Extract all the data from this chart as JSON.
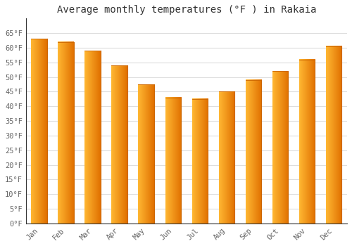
{
  "title": "Average monthly temperatures (°F ) in Rakaia",
  "months": [
    "Jan",
    "Feb",
    "Mar",
    "Apr",
    "May",
    "Jun",
    "Jul",
    "Aug",
    "Sep",
    "Oct",
    "Nov",
    "Dec"
  ],
  "values": [
    63,
    62,
    59,
    54,
    47.5,
    43,
    42.5,
    45,
    49,
    52,
    56,
    60.5
  ],
  "bar_color_left": "#FFB732",
  "bar_color_right": "#F07800",
  "bar_edge_color": "#CC6600",
  "ylim": [
    0,
    70
  ],
  "yticks": [
    0,
    5,
    10,
    15,
    20,
    25,
    30,
    35,
    40,
    45,
    50,
    55,
    60,
    65
  ],
  "ytick_labels": [
    "0°F",
    "5°F",
    "10°F",
    "15°F",
    "20°F",
    "25°F",
    "30°F",
    "35°F",
    "40°F",
    "45°F",
    "50°F",
    "55°F",
    "60°F",
    "65°F"
  ],
  "background_color": "#ffffff",
  "plot_bg_color": "#ffffff",
  "grid_color": "#dddddd",
  "title_fontsize": 10,
  "tick_fontsize": 7.5,
  "bar_width": 0.6,
  "axis_color": "#333333",
  "tick_color": "#666666"
}
